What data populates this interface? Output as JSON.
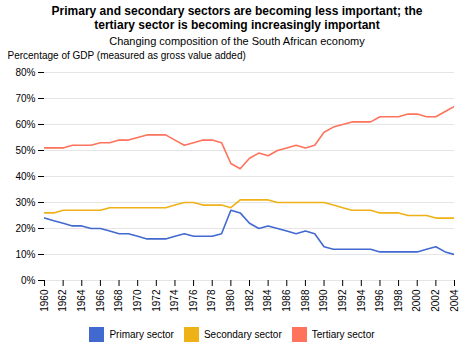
{
  "chart_data": {
    "type": "line",
    "title": "Primary and secondary sectors are becoming less important; the\ntertiary sector is becoming increasingly important",
    "subtitle": "Changing composition of the South African economy",
    "ylabel": "Percentage of GDP (measured as gross value added)",
    "x": [
      1960,
      1961,
      1962,
      1963,
      1964,
      1965,
      1966,
      1967,
      1968,
      1969,
      1970,
      1971,
      1972,
      1973,
      1974,
      1975,
      1976,
      1977,
      1978,
      1979,
      1980,
      1981,
      1982,
      1983,
      1984,
      1985,
      1986,
      1987,
      1988,
      1989,
      1990,
      1991,
      1992,
      1993,
      1994,
      1995,
      1996,
      1997,
      1998,
      1999,
      2000,
      2001,
      2002,
      2003,
      2004
    ],
    "series": [
      {
        "name": "Primary sector",
        "values": [
          24,
          23,
          22,
          21,
          21,
          20,
          20,
          19,
          18,
          18,
          17,
          16,
          16,
          16,
          17,
          18,
          17,
          17,
          17,
          18,
          27,
          26,
          22,
          20,
          21,
          20,
          19,
          18,
          19,
          18,
          13,
          12,
          12,
          12,
          12,
          12,
          11,
          11,
          11,
          11,
          11,
          12,
          13,
          11,
          10
        ]
      },
      {
        "name": "Secondary sector",
        "values": [
          26,
          26,
          27,
          27,
          27,
          27,
          27,
          28,
          28,
          28,
          28,
          28,
          28,
          28,
          29,
          30,
          30,
          29,
          29,
          29,
          28,
          31,
          31,
          31,
          31,
          30,
          30,
          30,
          30,
          30,
          30,
          29,
          28,
          27,
          27,
          27,
          26,
          26,
          26,
          25,
          25,
          25,
          24,
          24,
          24
        ]
      },
      {
        "name": "Tertiary sector",
        "values": [
          51,
          51,
          51,
          52,
          52,
          52,
          53,
          53,
          54,
          54,
          55,
          56,
          56,
          56,
          54,
          52,
          53,
          54,
          54,
          53,
          45,
          43,
          47,
          49,
          48,
          50,
          51,
          52,
          51,
          52,
          57,
          59,
          60,
          61,
          61,
          61,
          63,
          63,
          63,
          64,
          64,
          63,
          63,
          65,
          67
        ]
      }
    ],
    "xlim": [
      1960,
      2004
    ],
    "xticks": [
      1960,
      1962,
      1964,
      1966,
      1968,
      1970,
      1972,
      1974,
      1976,
      1978,
      1980,
      1982,
      1984,
      1986,
      1988,
      1990,
      1992,
      1994,
      1996,
      1998,
      2000,
      2002,
      2004
    ],
    "ylim": [
      0,
      80
    ],
    "yticks": [
      {
        "value": 0,
        "label": "0%"
      },
      {
        "value": 10,
        "label": "10%"
      },
      {
        "value": 20,
        "label": "20%"
      },
      {
        "value": 30,
        "label": "30%"
      },
      {
        "value": 40,
        "label": "40%"
      },
      {
        "value": 50,
        "label": "50%"
      },
      {
        "value": 60,
        "label": "60%"
      },
      {
        "value": 70,
        "label": "70%"
      },
      {
        "value": 80,
        "label": "80%"
      }
    ],
    "grid": true,
    "legend": "bottom"
  }
}
